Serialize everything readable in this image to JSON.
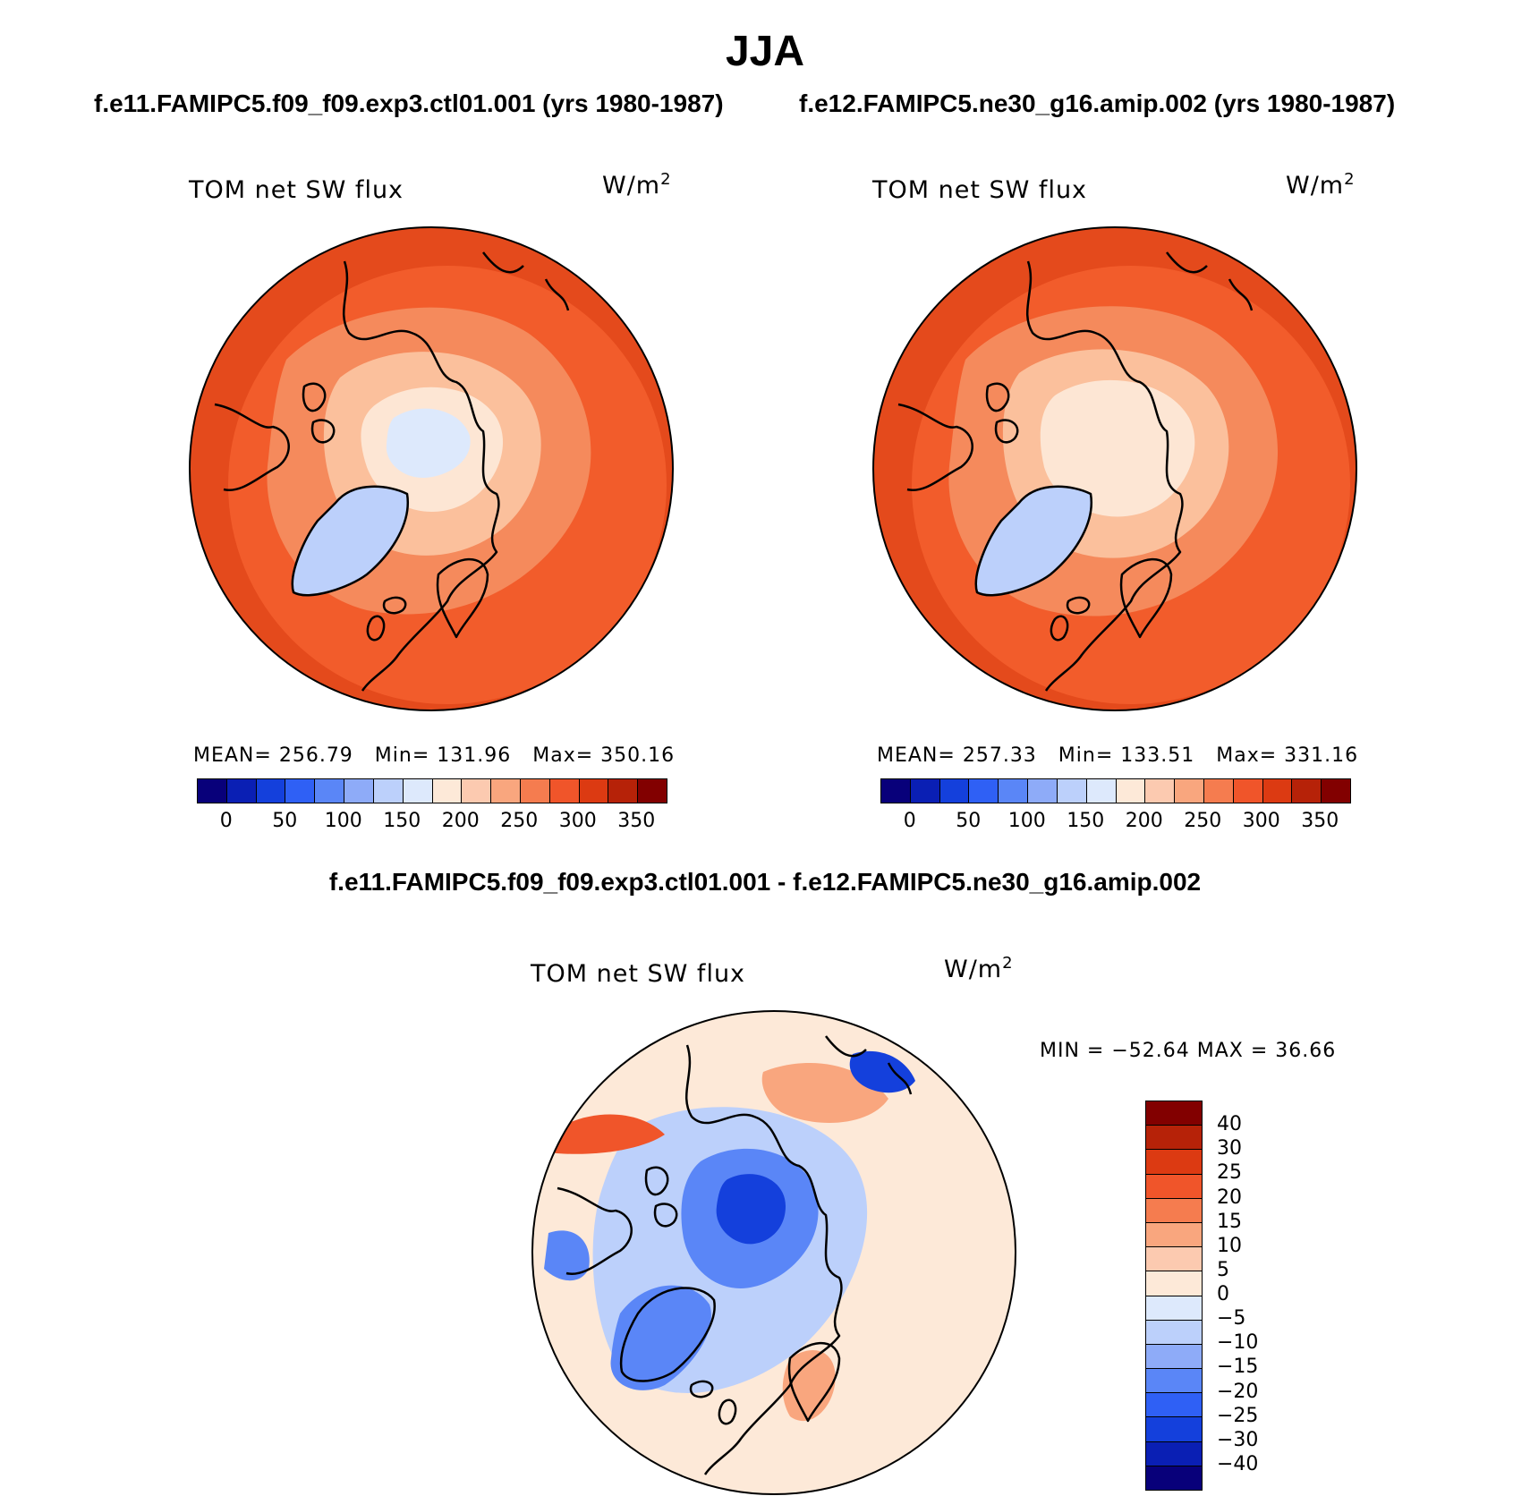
{
  "season": "JJA",
  "case_titles": {
    "left": "f.e11.FAMIPC5.f09_f09.exp3.ctl01.001 (yrs 1980-1987)",
    "right": "f.e12.FAMIPC5.ne30_g16.amip.002 (yrs 1980-1987)"
  },
  "diff_title": "f.e11.FAMIPC5.f09_f09.exp3.ctl01.001 - f.e12.FAMIPC5.ne30_g16.amip.002",
  "variable": "TOM net SW flux",
  "units": {
    "base": "W/m",
    "exponent": "2"
  },
  "panels": {
    "left": {
      "mean_label": "MEAN=",
      "mean": "256.79",
      "min_label": "Min=",
      "min": "131.96",
      "max_label": "Max=",
      "max": "350.16"
    },
    "right": {
      "mean_label": "MEAN=",
      "mean": "257.33",
      "min_label": "Min=",
      "min": "133.51",
      "max_label": "Max=",
      "max": "331.16"
    },
    "diff": {
      "stats_text": "MIN = −52.64 MAX =  36.66"
    }
  },
  "colorbar_main": {
    "ticks": [
      "0",
      "50",
      "100",
      "150",
      "200",
      "250",
      "300",
      "350"
    ],
    "colors": [
      "#08007a",
      "#0a1fb4",
      "#1440dc",
      "#2f60f5",
      "#5a86f7",
      "#8eabf8",
      "#bcd0fb",
      "#dde9fc",
      "#fde9d8",
      "#fccab0",
      "#f9a67e",
      "#f57c4f",
      "#f0552a",
      "#dc3a12",
      "#b62208",
      "#820000"
    ]
  },
  "colorbar_diff": {
    "ticks": [
      "40",
      "30",
      "25",
      "20",
      "15",
      "10",
      "5",
      "0",
      "−5",
      "−10",
      "−15",
      "−20",
      "−25",
      "−30",
      "−40"
    ],
    "colors": [
      "#820000",
      "#b62208",
      "#dc3a12",
      "#f0552a",
      "#f57c4f",
      "#f9a67e",
      "#fccab0",
      "#fde9d8",
      "#dde9fc",
      "#bcd0fb",
      "#8eabf8",
      "#5a86f7",
      "#2f60f5",
      "#1440dc",
      "#0a1fb4",
      "#08007a"
    ]
  },
  "map_palette": {
    "main_field": "#f25c2b",
    "main_outer": "#e44a1c",
    "main_mid": "#f58a5c",
    "main_inner": "#fbc09c",
    "main_core": "#fde6d4",
    "main_ice": "#dde9fc",
    "greenland": "#bcd0fb",
    "diff_field": "#fde9d8",
    "diff_cool": "#bcd0fb",
    "diff_blue": "#5a86f7",
    "diff_deep": "#1440dc",
    "diff_warm": "#f9a67e",
    "diff_hot": "#f0552a"
  }
}
